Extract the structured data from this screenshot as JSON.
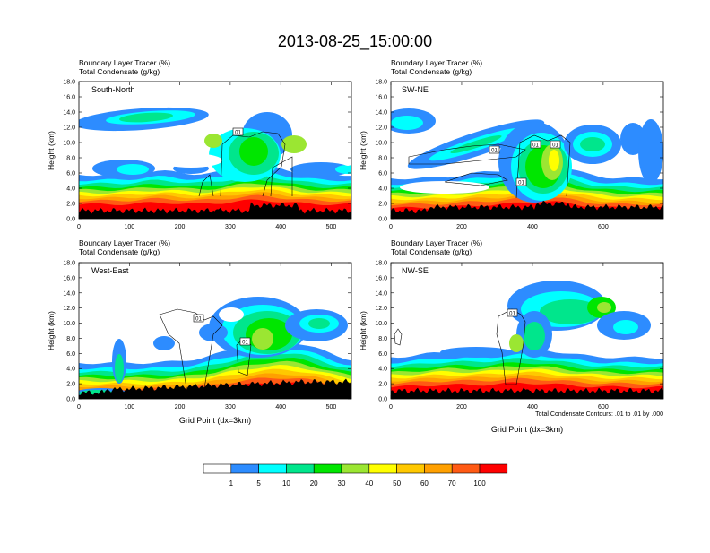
{
  "title": "2013-08-25_15:00:00",
  "header_line1": "Boundary Layer Tracer   (%)",
  "header_line2": "Total Condensate   (g/kg)",
  "ylabel": "Height (km)",
  "xlabel": "Grid Point (dx=3km)",
  "contour_note": "Total Condensate Contours: .01 to .01 by .000",
  "contour_label": "01",
  "y_ticks": [
    "0.0",
    "2.0",
    "4.0",
    "6.0",
    "8.0",
    "10.0",
    "12.0",
    "14.0",
    "16.0",
    "18.0"
  ],
  "y_tick_values": [
    0,
    2,
    4,
    6,
    8,
    10,
    12,
    14,
    16,
    18
  ],
  "colors": {
    "c1": "#ffffff",
    "c2": "#2d8cff",
    "c3": "#00ffff",
    "c4": "#00e68c",
    "c5": "#00e600",
    "c6": "#9be632",
    "c7": "#ffff00",
    "c8": "#ffc800",
    "c9": "#ffa000",
    "c10": "#ff5a14",
    "c11": "#ff0000",
    "terrain": "#000000"
  },
  "colorbar": {
    "labels": [
      "1",
      "5",
      "10",
      "20",
      "30",
      "40",
      "50",
      "60",
      "70",
      "100"
    ],
    "color_keys": [
      "c1",
      "c2",
      "c3",
      "c4",
      "c5",
      "c6",
      "c7",
      "c8",
      "c9",
      "c10",
      "c11"
    ]
  },
  "chart_data": [
    {
      "type": "heatmap",
      "name": "South-North",
      "xlim": [
        0,
        540
      ],
      "ylim": [
        0,
        18
      ],
      "x_ticks": [
        0,
        100,
        200,
        300,
        400,
        500
      ],
      "marker_x": 275,
      "legend": "top-left"
    },
    {
      "type": "heatmap",
      "name": "SW-NE",
      "xlim": [
        0,
        770
      ],
      "ylim": [
        0,
        18
      ],
      "x_ticks": [
        0,
        200,
        400,
        600
      ],
      "marker_x": 385,
      "legend": "top-left"
    },
    {
      "type": "heatmap",
      "name": "West-East",
      "xlim": [
        0,
        540
      ],
      "ylim": [
        0,
        18
      ],
      "x_ticks": [
        0,
        100,
        200,
        300,
        400,
        500
      ],
      "marker_x": 275,
      "legend": "top-left"
    },
    {
      "type": "heatmap",
      "name": "NW-SE",
      "xlim": [
        0,
        770
      ],
      "ylim": [
        0,
        18
      ],
      "x_ticks": [
        0,
        200,
        400,
        600
      ],
      "marker_x": 385,
      "legend": "top-left"
    }
  ]
}
